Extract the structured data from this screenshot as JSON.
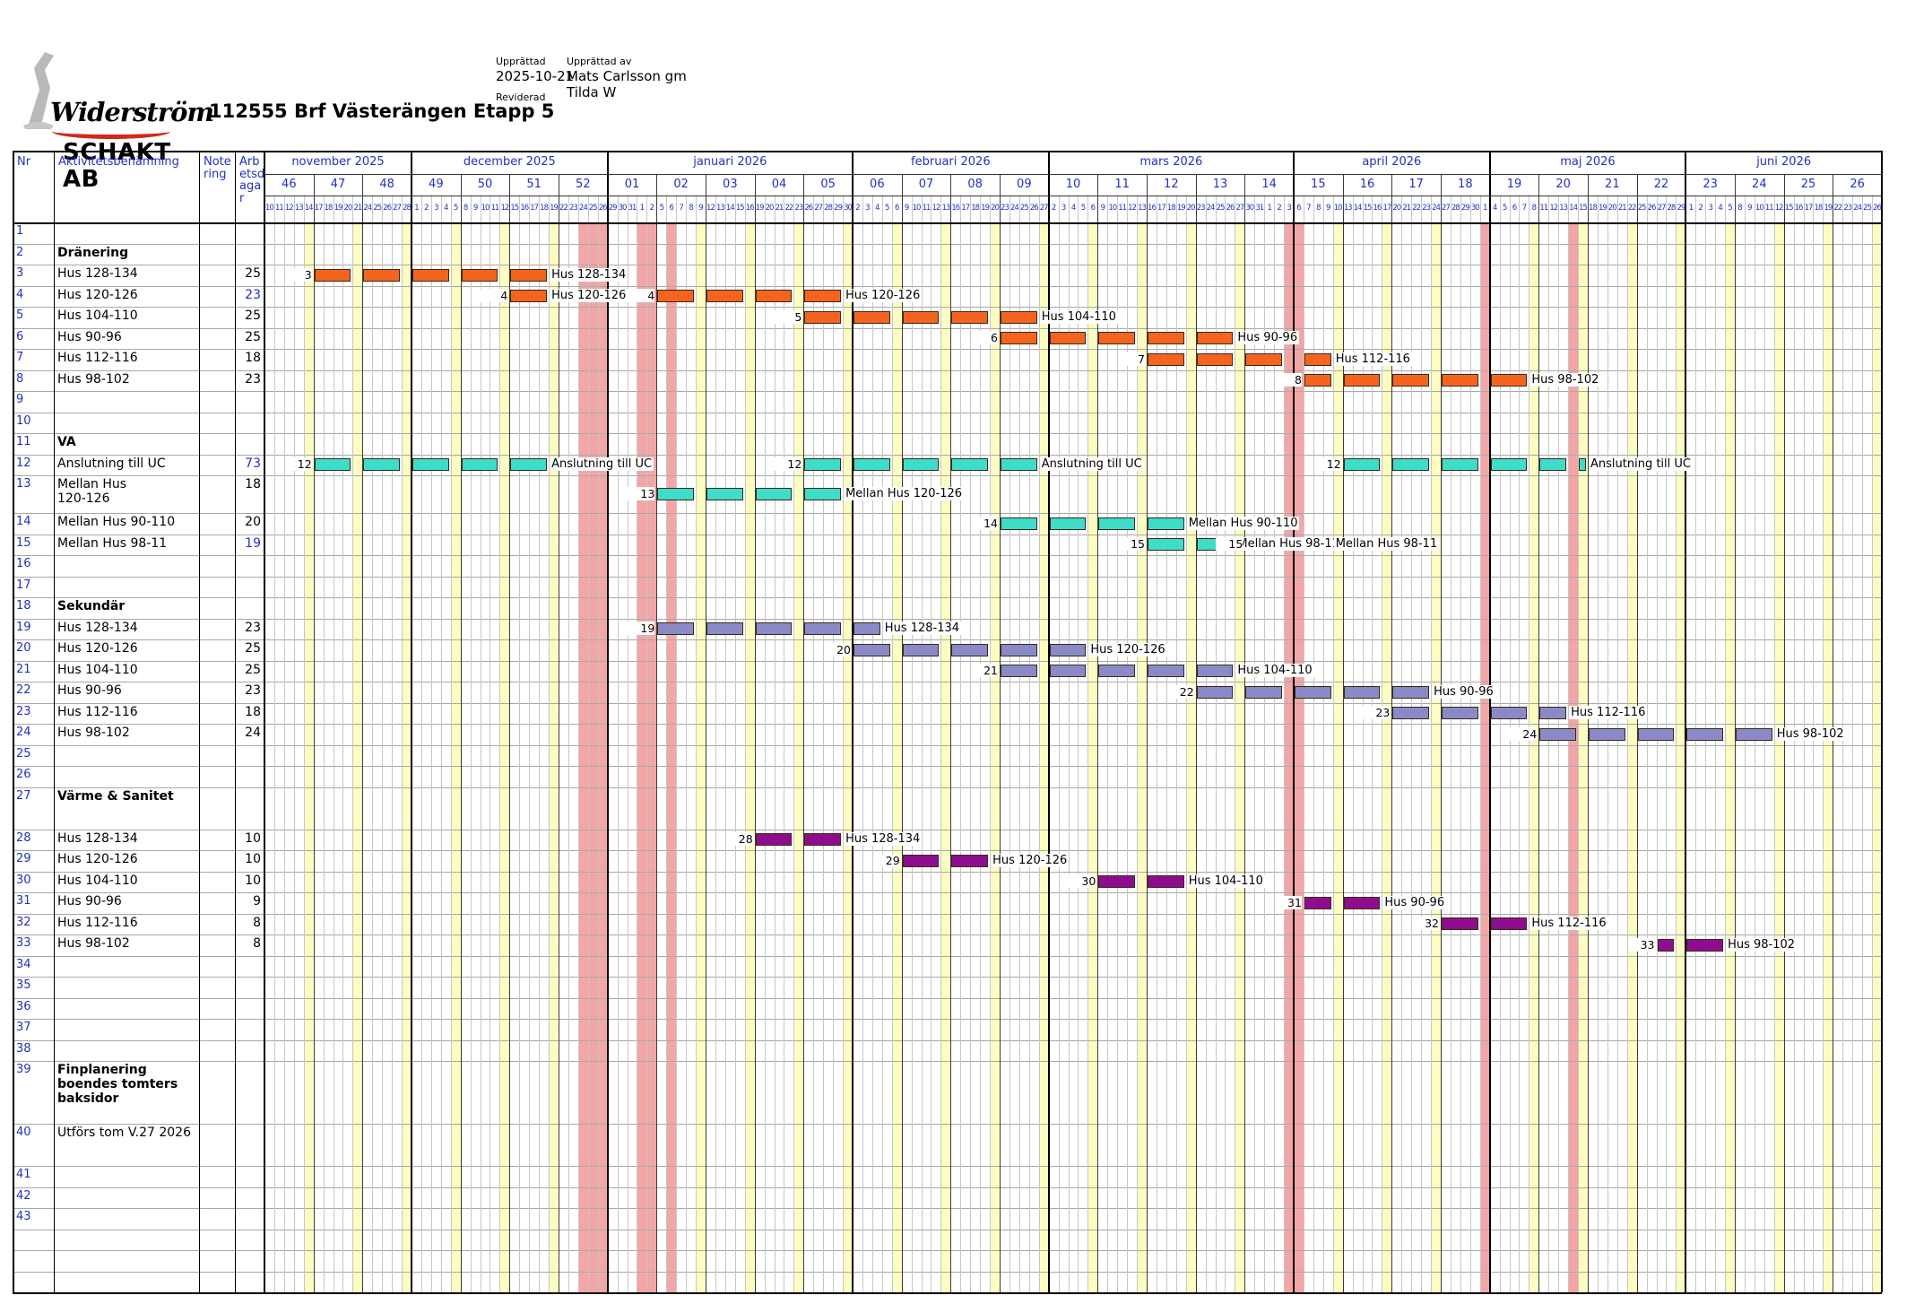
{
  "header": {
    "logo": {
      "line1": "Widerström",
      "line2": "SCHAKT AB"
    },
    "title": "112555 Brf Västerängen Etapp 5",
    "meta": {
      "created_label": "Upprättad",
      "created_value": "2025-10-21",
      "revised_label": "Reviderad",
      "author_label": "Upprättad av",
      "author_value1": "Mats Carlsson gm",
      "author_value2": "Tilda W"
    }
  },
  "table": {
    "col_headers": {
      "nr": "Nr",
      "activity": "Aktivitetsbenämning",
      "note": "Notering",
      "workdays": "Arbetsdagar"
    },
    "rows": [
      {
        "nr": "1",
        "label": "",
        "days": ""
      },
      {
        "nr": "2",
        "label": "Dränering",
        "days": "",
        "bold": true
      },
      {
        "nr": "3",
        "label": "Hus 128-134",
        "days": "25"
      },
      {
        "nr": "4",
        "label": "Hus 120-126",
        "days": "23",
        "days_blue": true
      },
      {
        "nr": "5",
        "label": "Hus 104-110",
        "days": "25"
      },
      {
        "nr": "6",
        "label": "Hus 90-96",
        "days": "25"
      },
      {
        "nr": "7",
        "label": "Hus 112-116",
        "days": "18"
      },
      {
        "nr": "8",
        "label": "Hus 98-102",
        "days": "23"
      },
      {
        "nr": "9",
        "label": "",
        "days": ""
      },
      {
        "nr": "10",
        "label": "",
        "days": ""
      },
      {
        "nr": "11",
        "label": "VA",
        "days": "",
        "bold": true
      },
      {
        "nr": "12",
        "label": "Anslutning till UC",
        "days": "73",
        "days_blue": true
      },
      {
        "nr": "13",
        "label": "Mellan Hus\n120-126",
        "days": "18",
        "tall": 42
      },
      {
        "nr": "14",
        "label": "Mellan Hus 90-110",
        "days": "20"
      },
      {
        "nr": "15",
        "label": "Mellan Hus 98-11",
        "days": "19",
        "days_blue": true
      },
      {
        "nr": "16",
        "label": "",
        "days": ""
      },
      {
        "nr": "17",
        "label": "",
        "days": ""
      },
      {
        "nr": "18",
        "label": "Sekundär",
        "days": "",
        "bold": true
      },
      {
        "nr": "19",
        "label": "Hus 128-134",
        "days": "23"
      },
      {
        "nr": "20",
        "label": "Hus 120-126",
        "days": "25"
      },
      {
        "nr": "21",
        "label": "Hus 104-110",
        "days": "25"
      },
      {
        "nr": "22",
        "label": "Hus 90-96",
        "days": "23"
      },
      {
        "nr": "23",
        "label": "Hus 112-116",
        "days": "18"
      },
      {
        "nr": "24",
        "label": "Hus 98-102",
        "days": "24"
      },
      {
        "nr": "25",
        "label": "",
        "days": ""
      },
      {
        "nr": "26",
        "label": "",
        "days": ""
      },
      {
        "nr": "27",
        "label": "Värme & Sanitet",
        "days": "",
        "bold": true,
        "tall": 47
      },
      {
        "nr": "28",
        "label": "Hus 128-134",
        "days": "10"
      },
      {
        "nr": "29",
        "label": "Hus 120-126",
        "days": "10"
      },
      {
        "nr": "30",
        "label": "Hus 104-110",
        "days": "10"
      },
      {
        "nr": "31",
        "label": "Hus 90-96",
        "days": "9"
      },
      {
        "nr": "32",
        "label": "Hus 112-116",
        "days": "8"
      },
      {
        "nr": "33",
        "label": "Hus 98-102",
        "days": "8"
      },
      {
        "nr": "34",
        "label": "",
        "days": ""
      },
      {
        "nr": "35",
        "label": "",
        "days": ""
      },
      {
        "nr": "36",
        "label": "",
        "days": ""
      },
      {
        "nr": "37",
        "label": "",
        "days": ""
      },
      {
        "nr": "38",
        "label": "",
        "days": ""
      },
      {
        "nr": "39",
        "label": "Finplanering boendes tomters baksidor",
        "days": "",
        "bold": true,
        "tall": 70
      },
      {
        "nr": "40",
        "label": "Utförs tom V.27 2026",
        "days": "",
        "tall": 47
      },
      {
        "nr": "41",
        "label": "",
        "days": ""
      },
      {
        "nr": "42",
        "label": "",
        "days": ""
      },
      {
        "nr": "43",
        "label": "",
        "days": ""
      }
    ]
  },
  "chart_data": {
    "type": "bar",
    "variant": "gantt",
    "title": "112555 Brf Västerängen Etapp 5",
    "colors": {
      "friday_band": "#fdfdc2",
      "holiday_band": "#f3a6a6",
      "header_text": "#2130c8",
      "grid_day": "#c6c6c6",
      "grid_week": "#3c3c3c",
      "grid_month": "#000000"
    },
    "timeline": {
      "months": [
        {
          "label": "november 2025",
          "weeks": [
            {
              "num": "46",
              "days": [
                10,
                11,
                12,
                13,
                14
              ]
            },
            {
              "num": "47",
              "days": [
                17,
                18,
                19,
                20,
                21
              ]
            },
            {
              "num": "48",
              "days": [
                24,
                25,
                26,
                27,
                28
              ]
            }
          ]
        },
        {
          "label": "december 2025",
          "weeks": [
            {
              "num": "49",
              "days": [
                1,
                2,
                3,
                4,
                5
              ]
            },
            {
              "num": "50",
              "days": [
                8,
                9,
                10,
                11,
                12
              ]
            },
            {
              "num": "51",
              "days": [
                15,
                16,
                17,
                18,
                19
              ]
            },
            {
              "num": "52",
              "days": [
                22,
                23,
                24,
                25,
                26
              ]
            }
          ]
        },
        {
          "label": "januari 2026",
          "weeks": [
            {
              "num": "01",
              "days": [
                29,
                30,
                31,
                1,
                2
              ]
            },
            {
              "num": "02",
              "days": [
                5,
                6,
                7,
                8,
                9
              ]
            },
            {
              "num": "03",
              "days": [
                12,
                13,
                14,
                15,
                16
              ]
            },
            {
              "num": "04",
              "days": [
                19,
                20,
                21,
                22,
                23
              ]
            },
            {
              "num": "05",
              "days": [
                26,
                27,
                28,
                29,
                30
              ]
            }
          ]
        },
        {
          "label": "februari 2026",
          "weeks": [
            {
              "num": "06",
              "days": [
                2,
                3,
                4,
                5,
                6
              ]
            },
            {
              "num": "07",
              "days": [
                9,
                10,
                11,
                12,
                13
              ]
            },
            {
              "num": "08",
              "days": [
                16,
                17,
                18,
                19,
                20
              ]
            },
            {
              "num": "09",
              "days": [
                23,
                24,
                25,
                26,
                27
              ]
            }
          ]
        },
        {
          "label": "mars 2026",
          "weeks": [
            {
              "num": "10",
              "days": [
                2,
                3,
                4,
                5,
                6
              ]
            },
            {
              "num": "11",
              "days": [
                9,
                10,
                11,
                12,
                13
              ]
            },
            {
              "num": "12",
              "days": [
                16,
                17,
                18,
                19,
                20
              ]
            },
            {
              "num": "13",
              "days": [
                23,
                24,
                25,
                26,
                27
              ]
            },
            {
              "num": "14",
              "days": [
                30,
                31,
                1,
                2,
                3
              ]
            }
          ]
        },
        {
          "label": "april 2026",
          "weeks": [
            {
              "num": "15",
              "days": [
                6,
                7,
                8,
                9,
                10
              ]
            },
            {
              "num": "16",
              "days": [
                13,
                14,
                15,
                16,
                17
              ]
            },
            {
              "num": "17",
              "days": [
                20,
                21,
                22,
                23,
                24
              ]
            },
            {
              "num": "18",
              "days": [
                27,
                28,
                29,
                30,
                1
              ]
            }
          ]
        },
        {
          "label": "maj 2026",
          "weeks": [
            {
              "num": "19",
              "days": [
                4,
                5,
                6,
                7,
                8
              ]
            },
            {
              "num": "20",
              "days": [
                11,
                12,
                13,
                14,
                15
              ]
            },
            {
              "num": "21",
              "days": [
                18,
                19,
                20,
                21,
                22
              ]
            },
            {
              "num": "22",
              "days": [
                25,
                26,
                27,
                28,
                29
              ]
            }
          ]
        },
        {
          "label": "juni 2026",
          "weeks": [
            {
              "num": "23",
              "days": [
                1,
                2,
                3,
                4,
                5
              ]
            },
            {
              "num": "24",
              "days": [
                8,
                9,
                10,
                11,
                12
              ]
            },
            {
              "num": "25",
              "days": [
                15,
                16,
                17,
                18,
                19
              ]
            },
            {
              "num": "26",
              "days": [
                22,
                23,
                24,
                25,
                26
              ]
            }
          ]
        }
      ]
    },
    "holidays_week_day": [
      [
        6,
        3
      ],
      [
        6,
        4
      ],
      [
        6,
        5
      ],
      [
        7,
        4
      ],
      [
        7,
        5
      ],
      [
        8,
        2
      ],
      [
        20,
        5
      ],
      [
        21,
        1
      ],
      [
        24,
        5
      ],
      [
        26,
        4
      ]
    ],
    "groups": [
      {
        "name": "Dränering",
        "color": "#f4641e"
      },
      {
        "name": "VA",
        "color": "#3edccb"
      },
      {
        "name": "Sekundär",
        "color": "#8a8ac8"
      },
      {
        "name": "Värme & Sanitet",
        "color": "#8e0d8e"
      }
    ],
    "tasks": [
      {
        "row": "3",
        "group": "Dränering",
        "name": "Hus 128-134",
        "workdays": 25,
        "chunks": [
          [
            1,
            1,
            5,
            4,
            1,
            1
          ]
        ]
      },
      {
        "row": "4",
        "group": "Dränering",
        "name": "Hus 120-126",
        "workdays": 23,
        "chunks": [
          [
            5,
            1,
            5,
            4,
            1,
            1
          ],
          [
            8,
            1,
            11,
            4,
            1,
            1
          ]
        ]
      },
      {
        "row": "5",
        "group": "Dränering",
        "name": "Hus 104-110",
        "workdays": 25,
        "chunks": [
          [
            11,
            1,
            15,
            4,
            1,
            1
          ]
        ]
      },
      {
        "row": "6",
        "group": "Dränering",
        "name": "Hus 90-96",
        "workdays": 25,
        "chunks": [
          [
            15,
            1,
            19,
            4,
            1,
            1
          ]
        ]
      },
      {
        "row": "7",
        "group": "Dränering",
        "name": "Hus 112-116",
        "workdays": 18,
        "chunks": [
          [
            18,
            1,
            20,
            4,
            1,
            0
          ],
          [
            21,
            2,
            21,
            4,
            0,
            1
          ]
        ]
      },
      {
        "row": "8",
        "group": "Dränering",
        "name": "Hus 98-102",
        "workdays": 23,
        "chunks": [
          [
            21,
            2,
            25,
            4,
            1,
            1
          ]
        ]
      },
      {
        "row": "12",
        "group": "VA",
        "name": "Anslutning till UC",
        "workdays": 73,
        "chunks": [
          [
            1,
            1,
            5,
            4,
            1,
            1
          ],
          [
            11,
            1,
            15,
            4,
            1,
            1
          ],
          [
            22,
            1,
            26,
            3,
            1,
            0
          ],
          [
            26,
            5,
            26,
            5,
            0,
            1
          ]
        ]
      },
      {
        "row": "13",
        "group": "VA",
        "name": "Mellan Hus 120-126",
        "workdays": 18,
        "chunks": [
          [
            8,
            1,
            11,
            4,
            1,
            1
          ]
        ]
      },
      {
        "row": "14",
        "group": "VA",
        "name": "Mellan Hus 90-110",
        "workdays": 20,
        "chunks": [
          [
            15,
            1,
            18,
            4,
            1,
            1
          ]
        ]
      },
      {
        "row": "15",
        "group": "VA",
        "name": "Mellan Hus 98-11",
        "workdays": 19,
        "chunks": [
          [
            18,
            1,
            19,
            4,
            1,
            1
          ],
          [
            20,
            1,
            21,
            4,
            1,
            1
          ]
        ]
      },
      {
        "row": "19",
        "group": "Sekundär",
        "name": "Hus 128-134",
        "workdays": 23,
        "chunks": [
          [
            8,
            1,
            12,
            3,
            1,
            1
          ]
        ]
      },
      {
        "row": "20",
        "group": "Sekundär",
        "name": "Hus 120-126",
        "workdays": 25,
        "chunks": [
          [
            12,
            1,
            16,
            4,
            1,
            1
          ]
        ]
      },
      {
        "row": "21",
        "group": "Sekundär",
        "name": "Hus 104-110",
        "workdays": 25,
        "chunks": [
          [
            15,
            1,
            19,
            4,
            1,
            1
          ]
        ]
      },
      {
        "row": "22",
        "group": "Sekundär",
        "name": "Hus 90-96",
        "workdays": 23,
        "chunks": [
          [
            19,
            1,
            23,
            4,
            1,
            1
          ]
        ]
      },
      {
        "row": "23",
        "group": "Sekundär",
        "name": "Hus 112-116",
        "workdays": 18,
        "chunks": [
          [
            23,
            1,
            26,
            3,
            1,
            1
          ]
        ]
      },
      {
        "row": "24",
        "group": "Sekundär",
        "name": "Hus 98-102",
        "workdays": 24,
        "chunks": [
          [
            26,
            1,
            30,
            4,
            1,
            1
          ]
        ]
      },
      {
        "row": "28",
        "group": "Värme & Sanitet",
        "name": "Hus 128-134",
        "workdays": 10,
        "chunks": [
          [
            10,
            1,
            11,
            4,
            1,
            1
          ]
        ]
      },
      {
        "row": "29",
        "group": "Värme & Sanitet",
        "name": "Hus 120-126",
        "workdays": 10,
        "chunks": [
          [
            13,
            1,
            14,
            4,
            1,
            1
          ]
        ]
      },
      {
        "row": "30",
        "group": "Värme & Sanitet",
        "name": "Hus 104-110",
        "workdays": 10,
        "chunks": [
          [
            17,
            1,
            18,
            4,
            1,
            1
          ]
        ]
      },
      {
        "row": "31",
        "group": "Värme & Sanitet",
        "name": "Hus 90-96",
        "workdays": 9,
        "chunks": [
          [
            21,
            2,
            22,
            4,
            1,
            1
          ]
        ]
      },
      {
        "row": "32",
        "group": "Värme & Sanitet",
        "name": "Hus 112-116",
        "workdays": 8,
        "chunks": [
          [
            24,
            1,
            25,
            4,
            1,
            1
          ]
        ]
      },
      {
        "row": "33",
        "group": "Värme & Sanitet",
        "name": "Hus 98-102",
        "workdays": 8,
        "chunks": [
          [
            28,
            3,
            29,
            4,
            1,
            1
          ]
        ]
      }
    ]
  }
}
